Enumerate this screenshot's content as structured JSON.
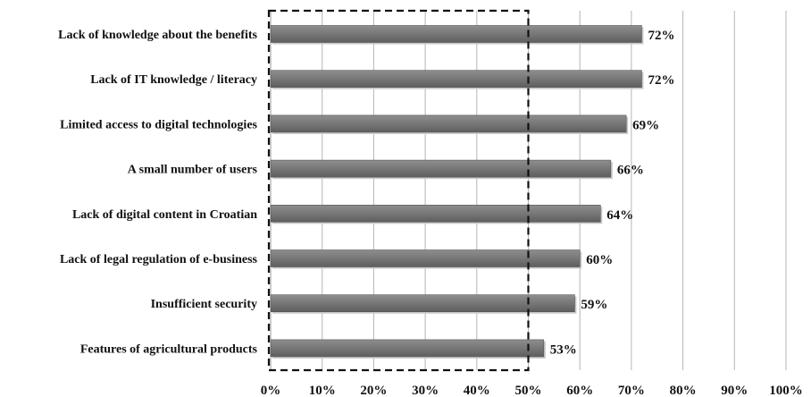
{
  "chart_data": {
    "type": "bar",
    "orientation": "horizontal",
    "categories": [
      "Lack of knowledge about the benefits",
      "Lack of IT knowledge / literacy",
      "Limited access to digital technologies",
      "A small number of users",
      "Lack of digital content in Croatian",
      "Lack of legal regulation of e-business",
      "Insufficient security",
      "Features of agricultural products"
    ],
    "values": [
      72,
      72,
      69,
      66,
      64,
      60,
      59,
      53
    ],
    "data_labels": [
      "72%",
      "72%",
      "69%",
      "66%",
      "64%",
      "60%",
      "59%",
      "53%"
    ],
    "xlim": [
      0,
      100
    ],
    "x_ticks": [
      "0%",
      "10%",
      "20%",
      "30%",
      "40%",
      "50%",
      "60%",
      "70%",
      "80%",
      "90%",
      "100%"
    ],
    "grid": "vertical",
    "highlight_range": [
      0,
      50
    ],
    "highlight_style": "dashed",
    "bar_color": "#7a7a7a",
    "title": "",
    "xlabel": "",
    "ylabel": ""
  }
}
